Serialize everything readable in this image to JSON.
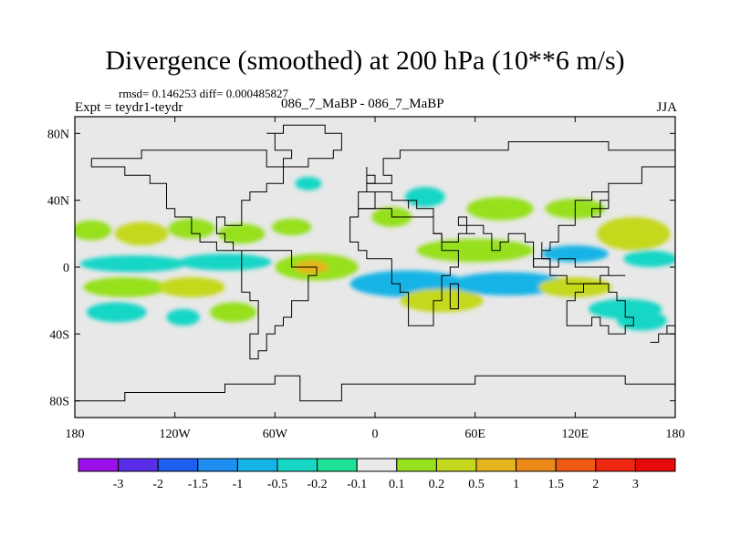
{
  "header": {
    "title": "Divergence (smoothed) at 200 hPa (10**6 m/s)",
    "stats": "rmsd= 0.146253 diff= 0.000485827",
    "expt": "Expt = teydr1-teydr",
    "cases": "086_7_MaBP - 086_7_MaBP",
    "season": "JJA"
  },
  "chart_data": {
    "type": "heatmap",
    "title": "Divergence (smoothed) at 200 hPa (10**6 m/s)",
    "projection": "cylindrical equidistant",
    "xlim": [
      -180,
      180
    ],
    "ylim": [
      -90,
      90
    ],
    "x_ticks": [
      {
        "value": -180,
        "label": "180"
      },
      {
        "value": -120,
        "label": "120W"
      },
      {
        "value": -60,
        "label": "60W"
      },
      {
        "value": 0,
        "label": "0"
      },
      {
        "value": 60,
        "label": "60E"
      },
      {
        "value": 120,
        "label": "120E"
      },
      {
        "value": 180,
        "label": "180"
      }
    ],
    "y_ticks": [
      {
        "value": 80,
        "label": "80N"
      },
      {
        "value": 40,
        "label": "40N"
      },
      {
        "value": 0,
        "label": "0"
      },
      {
        "value": -40,
        "label": "40S"
      },
      {
        "value": -80,
        "label": "80S"
      }
    ],
    "background_color": "#e8e8e8",
    "colorbar": {
      "labels": [
        "-3",
        "-2",
        "-1.5",
        "-1",
        "-0.5",
        "-0.2",
        "-0.1",
        "0.1",
        "0.2",
        "0.5",
        "1",
        "1.5",
        "2",
        "3"
      ],
      "colors": [
        "#9a10e8",
        "#5a2ee8",
        "#1e5ef0",
        "#1e8ef0",
        "#16b4e6",
        "#18d6c6",
        "#1ee296",
        "#eaeaea",
        "#96e01e",
        "#c4d81e",
        "#e6b41c",
        "#ec8a18",
        "#ee5a14",
        "#ee2810",
        "#e60a0a"
      ],
      "legend_position": "bottom"
    },
    "anomaly_regions": [
      {
        "lon": -170,
        "lat": 22,
        "rx": 12,
        "ry": 6,
        "level": 0.2
      },
      {
        "lon": -140,
        "lat": 20,
        "rx": 16,
        "ry": 7,
        "level": 0.5
      },
      {
        "lon": -110,
        "lat": 23,
        "rx": 14,
        "ry": 6,
        "level": 0.2
      },
      {
        "lon": -80,
        "lat": 20,
        "rx": 14,
        "ry": 6,
        "level": 0.2
      },
      {
        "lon": -50,
        "lat": 24,
        "rx": 12,
        "ry": 5,
        "level": 0.2
      },
      {
        "lon": -145,
        "lat": 2,
        "rx": 32,
        "ry": 5,
        "level": -0.2
      },
      {
        "lon": -90,
        "lat": 3,
        "rx": 28,
        "ry": 5,
        "level": -0.2
      },
      {
        "lon": -35,
        "lat": 0,
        "rx": 25,
        "ry": 8,
        "level": 0.2
      },
      {
        "lon": -38,
        "lat": 0,
        "rx": 10,
        "ry": 4,
        "level": 1.0
      },
      {
        "lon": -150,
        "lat": -12,
        "rx": 25,
        "ry": 6,
        "level": 0.2
      },
      {
        "lon": -110,
        "lat": -12,
        "rx": 20,
        "ry": 6,
        "level": 0.5
      },
      {
        "lon": -155,
        "lat": -27,
        "rx": 18,
        "ry": 6,
        "level": -0.2
      },
      {
        "lon": -85,
        "lat": -27,
        "rx": 14,
        "ry": 6,
        "level": 0.2
      },
      {
        "lon": -115,
        "lat": -30,
        "rx": 10,
        "ry": 5,
        "level": -0.2
      },
      {
        "lon": 20,
        "lat": -10,
        "rx": 35,
        "ry": 8,
        "level": -0.5
      },
      {
        "lon": 40,
        "lat": -20,
        "rx": 25,
        "ry": 7,
        "level": 0.5
      },
      {
        "lon": 80,
        "lat": -10,
        "rx": 35,
        "ry": 7,
        "level": -0.5
      },
      {
        "lon": 120,
        "lat": -12,
        "rx": 22,
        "ry": 6,
        "level": 0.5
      },
      {
        "lon": 150,
        "lat": -25,
        "rx": 22,
        "ry": 6,
        "level": -0.2
      },
      {
        "lon": 60,
        "lat": 10,
        "rx": 35,
        "ry": 7,
        "level": 0.2
      },
      {
        "lon": 120,
        "lat": 8,
        "rx": 20,
        "ry": 5,
        "level": -0.5
      },
      {
        "lon": 155,
        "lat": 20,
        "rx": 22,
        "ry": 10,
        "level": 0.5
      },
      {
        "lon": 165,
        "lat": 5,
        "rx": 16,
        "ry": 5,
        "level": -0.2
      },
      {
        "lon": 75,
        "lat": 35,
        "rx": 20,
        "ry": 7,
        "level": 0.2
      },
      {
        "lon": 120,
        "lat": 35,
        "rx": 18,
        "ry": 6,
        "level": 0.2
      },
      {
        "lon": 30,
        "lat": 42,
        "rx": 12,
        "ry": 6,
        "level": -0.2
      },
      {
        "lon": 10,
        "lat": 30,
        "rx": 12,
        "ry": 6,
        "level": 0.2
      },
      {
        "lon": -40,
        "lat": 50,
        "rx": 8,
        "ry": 4,
        "level": -0.2
      },
      {
        "lon": 160,
        "lat": -32,
        "rx": 15,
        "ry": 6,
        "level": -0.2
      }
    ]
  }
}
